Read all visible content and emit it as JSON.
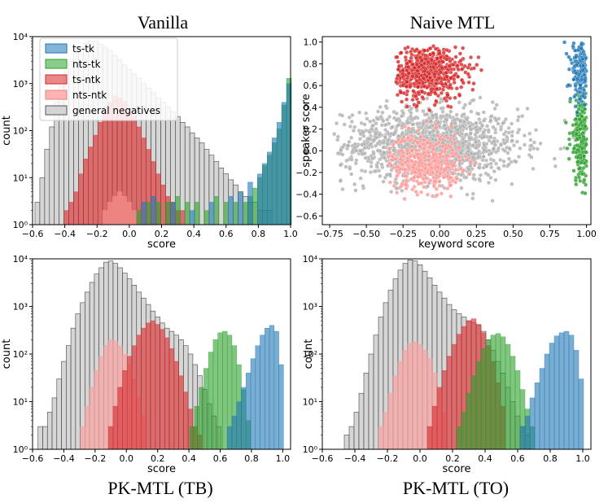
{
  "figure": {
    "legend_entries": [
      {
        "label": "ts-tk",
        "color": "#1f77b4"
      },
      {
        "label": "nts-tk",
        "color": "#2ca02c"
      },
      {
        "label": "ts-ntk",
        "color": "#d62728"
      },
      {
        "label": "nts-ntk",
        "color": "#ff9896"
      },
      {
        "label": "general negatives",
        "color": "#b0b0b0"
      }
    ]
  },
  "chart_data": [
    {
      "type": "bar",
      "subtype": "histogram",
      "title": "Vanilla",
      "xlabel": "score",
      "ylabel": "count",
      "yscale": "log",
      "xlim": [
        -0.6,
        1.0
      ],
      "ylim": [
        1,
        10000
      ],
      "xticks": [
        "−0.6",
        "−0.4",
        "−0.2",
        "0.0",
        "0.2",
        "0.4",
        "0.6",
        "0.8",
        "1.0"
      ],
      "yticks": [
        "10⁰",
        "10¹",
        "10²",
        "10³",
        "10⁴"
      ],
      "legend": "top-left",
      "series": [
        {
          "name": "general negatives",
          "color": "#b0b0b0",
          "centers": [
            -0.57,
            -0.54,
            -0.51,
            -0.48,
            -0.45,
            -0.42,
            -0.39,
            -0.36,
            -0.33,
            -0.3,
            -0.27,
            -0.24,
            -0.21,
            -0.18,
            -0.15,
            -0.12,
            -0.09,
            -0.06,
            -0.03,
            0.0,
            0.03,
            0.06,
            0.09,
            0.12,
            0.15,
            0.18,
            0.21,
            0.24,
            0.27,
            0.3,
            0.33,
            0.36,
            0.39,
            0.42,
            0.45,
            0.48,
            0.51,
            0.54,
            0.57,
            0.6,
            0.63,
            0.66,
            0.69,
            0.72,
            0.75,
            0.78,
            0.81,
            0.84,
            0.87
          ],
          "counts": [
            3,
            10,
            40,
            120,
            400,
            900,
            1800,
            3000,
            4500,
            6000,
            7200,
            8000,
            8000,
            7000,
            6000,
            5000,
            4000,
            3200,
            2500,
            2000,
            1600,
            1300,
            1000,
            800,
            650,
            500,
            400,
            320,
            250,
            200,
            150,
            120,
            90,
            70,
            55,
            40,
            30,
            22,
            16,
            12,
            9,
            7,
            5,
            4,
            3,
            3,
            2,
            2,
            2
          ]
        },
        {
          "name": "ts-ntk",
          "color": "#d62728",
          "centers": [
            -0.39,
            -0.36,
            -0.33,
            -0.3,
            -0.27,
            -0.24,
            -0.21,
            -0.18,
            -0.15,
            -0.12,
            -0.09,
            -0.06,
            -0.03,
            0.0,
            0.03,
            0.06,
            0.09,
            0.12,
            0.15,
            0.18,
            0.21,
            0.24,
            0.27,
            0.3,
            0.33
          ],
          "counts": [
            2,
            3,
            5,
            12,
            25,
            45,
            80,
            150,
            250,
            400,
            550,
            500,
            420,
            300,
            200,
            120,
            70,
            40,
            22,
            12,
            7,
            4,
            3,
            2,
            2
          ]
        },
        {
          "name": "nts-ntk",
          "color": "#ff9896",
          "centers": [
            -0.15,
            -0.12,
            -0.09,
            -0.06,
            -0.03,
            0.0,
            0.03
          ],
          "counts": [
            2,
            3,
            4,
            5,
            4,
            3,
            2
          ]
        },
        {
          "name": "nts-tk",
          "color": "#2ca02c",
          "centers": [
            0.06,
            0.12,
            0.18,
            0.24,
            0.3,
            0.36,
            0.42,
            0.48,
            0.54,
            0.6,
            0.66,
            0.72,
            0.75,
            0.78,
            0.81,
            0.84,
            0.87,
            0.9,
            0.93,
            0.96,
            0.99
          ],
          "counts": [
            2,
            3,
            3,
            3,
            4,
            3,
            3,
            2,
            4,
            3,
            3,
            3,
            4,
            6,
            10,
            18,
            30,
            55,
            110,
            350,
            1300
          ]
        },
        {
          "name": "ts-tk",
          "color": "#1f77b4",
          "centers": [
            0.09,
            0.15,
            0.27,
            0.39,
            0.51,
            0.63,
            0.69,
            0.75,
            0.81,
            0.84,
            0.87,
            0.9,
            0.93,
            0.96,
            0.99
          ],
          "counts": [
            3,
            4,
            3,
            2,
            3,
            4,
            5,
            8,
            12,
            20,
            35,
            70,
            150,
            400,
            1000
          ]
        }
      ]
    },
    {
      "type": "scatter",
      "title": "Naive MTL",
      "xlabel": "keyword score",
      "ylabel": "speaker score",
      "xlim": [
        -0.8,
        1.03
      ],
      "ylim": [
        -0.68,
        1.05
      ],
      "xticks": [
        -0.75,
        -0.5,
        -0.25,
        0.0,
        0.25,
        0.5,
        0.75,
        1.0
      ],
      "xtick_labels": [
        "−0.75",
        "−0.50",
        "−0.25",
        "0.00",
        "0.25",
        "0.50",
        "0.75",
        "1.00"
      ],
      "yticks": [
        -0.6,
        -0.4,
        -0.2,
        0.0,
        0.2,
        0.4,
        0.6,
        0.8,
        1.0
      ],
      "ytick_labels": [
        "−0.6",
        "−0.4",
        "−0.2",
        "0.0",
        "0.2",
        "0.4",
        "0.6",
        "0.8",
        "1.0"
      ],
      "clusters": [
        {
          "name": "general negatives",
          "color": "#b0b0b0",
          "center": [
            -0.05,
            0.05
          ],
          "spread": [
            0.3,
            0.17
          ],
          "n": 1400,
          "clip": [
            -0.72,
            0.98,
            -0.6,
            0.55
          ]
        },
        {
          "name": "nts-ntk",
          "color": "#ff9896",
          "center": [
            -0.1,
            -0.1
          ],
          "spread": [
            0.12,
            0.13
          ],
          "n": 450,
          "clip": [
            -0.35,
            0.25,
            -0.45,
            0.3
          ]
        },
        {
          "name": "ts-ntk",
          "color": "#d62728",
          "center": [
            -0.08,
            0.72
          ],
          "spread": [
            0.12,
            0.12
          ],
          "n": 650,
          "clip": [
            -0.3,
            0.55,
            0.3,
            0.98
          ]
        },
        {
          "name": "nts-tk",
          "color": "#2ca02c",
          "center": [
            0.97,
            0.1
          ],
          "spread": [
            0.04,
            0.2
          ],
          "n": 260,
          "clip": [
            0.6,
            1.0,
            -0.5,
            0.55
          ]
        },
        {
          "name": "ts-tk",
          "color": "#1f77b4",
          "center": [
            0.97,
            0.75
          ],
          "spread": [
            0.04,
            0.15
          ],
          "n": 260,
          "clip": [
            0.55,
            1.0,
            0.35,
            1.0
          ]
        }
      ]
    },
    {
      "type": "bar",
      "subtype": "histogram",
      "title": "PK-MTL (TB)",
      "xlabel": "score",
      "ylabel": "count",
      "yscale": "log",
      "xlim": [
        -0.6,
        1.05
      ],
      "ylim": [
        1,
        10000
      ],
      "xticks": [
        "−0.6",
        "−0.4",
        "−0.2",
        "0.0",
        "0.2",
        "0.4",
        "0.6",
        "0.8",
        "1.0"
      ],
      "yticks": [
        "10⁰",
        "10¹",
        "10²",
        "10³",
        "10⁴"
      ],
      "series": [
        {
          "name": "general negatives",
          "color": "#b0b0b0",
          "centers": [
            -0.55,
            -0.52,
            -0.49,
            -0.46,
            -0.43,
            -0.4,
            -0.37,
            -0.34,
            -0.31,
            -0.28,
            -0.25,
            -0.22,
            -0.19,
            -0.16,
            -0.13,
            -0.1,
            -0.07,
            -0.04,
            -0.01,
            0.02,
            0.05,
            0.08,
            0.11,
            0.14,
            0.17,
            0.2,
            0.23,
            0.26,
            0.29,
            0.32,
            0.35,
            0.38,
            0.41,
            0.44,
            0.47,
            0.5,
            0.53,
            0.56,
            0.59
          ],
          "counts": [
            3,
            3,
            6,
            12,
            30,
            70,
            150,
            350,
            700,
            1200,
            2000,
            3200,
            4800,
            6500,
            8500,
            9000,
            8000,
            6500,
            5000,
            3800,
            2800,
            2000,
            1500,
            1100,
            800,
            600,
            450,
            350,
            300,
            250,
            200,
            150,
            100,
            60,
            35,
            18,
            9,
            5,
            3
          ]
        },
        {
          "name": "nts-ntk",
          "color": "#ff9896",
          "centers": [
            -0.28,
            -0.25,
            -0.22,
            -0.19,
            -0.16,
            -0.13,
            -0.1,
            -0.07,
            -0.04,
            -0.01,
            0.02,
            0.05,
            0.08,
            0.11
          ],
          "counts": [
            3,
            8,
            20,
            45,
            90,
            150,
            200,
            190,
            150,
            100,
            60,
            30,
            12,
            5
          ]
        },
        {
          "name": "ts-ntk",
          "color": "#d62728",
          "centers": [
            -0.1,
            -0.07,
            -0.04,
            -0.01,
            0.02,
            0.05,
            0.08,
            0.11,
            0.14,
            0.17,
            0.2,
            0.23,
            0.26,
            0.29,
            0.32,
            0.35,
            0.38,
            0.41,
            0.44,
            0.47
          ],
          "counts": [
            3,
            8,
            20,
            45,
            90,
            150,
            250,
            350,
            450,
            500,
            420,
            330,
            220,
            130,
            70,
            35,
            16,
            7,
            3,
            2
          ]
        },
        {
          "name": "nts-tk",
          "color": "#2ca02c",
          "centers": [
            0.42,
            0.45,
            0.48,
            0.51,
            0.54,
            0.57,
            0.6,
            0.63,
            0.66,
            0.69,
            0.72,
            0.75,
            0.78
          ],
          "counts": [
            3,
            8,
            20,
            50,
            110,
            200,
            280,
            300,
            250,
            150,
            60,
            18,
            4
          ]
        },
        {
          "name": "ts-tk",
          "color": "#1f77b4",
          "centers": [
            0.66,
            0.69,
            0.72,
            0.75,
            0.78,
            0.81,
            0.84,
            0.87,
            0.9,
            0.93,
            0.96,
            0.99
          ],
          "counts": [
            3,
            5,
            10,
            20,
            40,
            80,
            150,
            250,
            350,
            400,
            300,
            60
          ]
        }
      ]
    },
    {
      "type": "bar",
      "subtype": "histogram",
      "title": "PK-MTL (TO)",
      "xlabel": "score",
      "ylabel": "count",
      "yscale": "log",
      "xlim": [
        -0.6,
        1.05
      ],
      "ylim": [
        1,
        10000
      ],
      "xticks": [
        "−0.6",
        "−0.4",
        "−0.2",
        "0.0",
        "0.2",
        "0.4",
        "0.6",
        "0.8",
        "1.0"
      ],
      "yticks": [
        "10⁰",
        "10¹",
        "10²",
        "10³",
        "10⁴"
      ],
      "series": [
        {
          "name": "general negatives",
          "color": "#b0b0b0",
          "centers": [
            -0.45,
            -0.42,
            -0.39,
            -0.36,
            -0.33,
            -0.3,
            -0.27,
            -0.24,
            -0.21,
            -0.18,
            -0.15,
            -0.12,
            -0.09,
            -0.06,
            -0.03,
            0.0,
            0.03,
            0.06,
            0.09,
            0.12,
            0.15,
            0.18,
            0.21,
            0.24,
            0.27,
            0.3,
            0.33,
            0.36,
            0.39,
            0.42,
            0.45,
            0.48,
            0.51,
            0.54,
            0.57,
            0.6,
            0.63,
            0.66
          ],
          "counts": [
            2,
            3,
            6,
            15,
            40,
            100,
            250,
            600,
            1200,
            2200,
            3800,
            5800,
            8000,
            9500,
            9000,
            7500,
            5500,
            4000,
            2800,
            2000,
            1500,
            1100,
            850,
            700,
            600,
            500,
            450,
            400,
            300,
            200,
            120,
            70,
            40,
            20,
            10,
            5,
            3,
            2
          ]
        },
        {
          "name": "nts-ntk",
          "color": "#ff9896",
          "centers": [
            -0.24,
            -0.21,
            -0.18,
            -0.15,
            -0.12,
            -0.09,
            -0.06,
            -0.03,
            0.0,
            0.03,
            0.06,
            0.09,
            0.12,
            0.15
          ],
          "counts": [
            3,
            6,
            15,
            35,
            70,
            120,
            170,
            180,
            160,
            120,
            80,
            40,
            18,
            6
          ]
        },
        {
          "name": "ts-ntk",
          "color": "#d62728",
          "centers": [
            0.06,
            0.09,
            0.12,
            0.15,
            0.18,
            0.21,
            0.24,
            0.27,
            0.3,
            0.33,
            0.36,
            0.39,
            0.42,
            0.45,
            0.48,
            0.51
          ],
          "counts": [
            3,
            8,
            20,
            45,
            90,
            160,
            260,
            380,
            500,
            550,
            420,
            280,
            150,
            70,
            25,
            8
          ]
        },
        {
          "name": "nts-tk",
          "color": "#2ca02c",
          "centers": [
            0.24,
            0.27,
            0.3,
            0.33,
            0.36,
            0.39,
            0.42,
            0.45,
            0.48,
            0.51,
            0.54,
            0.57,
            0.6,
            0.63,
            0.66,
            0.69
          ],
          "counts": [
            3,
            6,
            15,
            35,
            70,
            130,
            200,
            250,
            270,
            230,
            160,
            90,
            45,
            18,
            7,
            3
          ]
        },
        {
          "name": "ts-tk",
          "color": "#1f77b4",
          "centers": [
            0.63,
            0.66,
            0.69,
            0.72,
            0.75,
            0.78,
            0.81,
            0.84,
            0.87,
            0.9,
            0.93,
            0.96,
            0.99
          ],
          "counts": [
            3,
            5,
            12,
            25,
            50,
            100,
            170,
            240,
            280,
            300,
            250,
            120,
            30
          ]
        }
      ]
    }
  ]
}
